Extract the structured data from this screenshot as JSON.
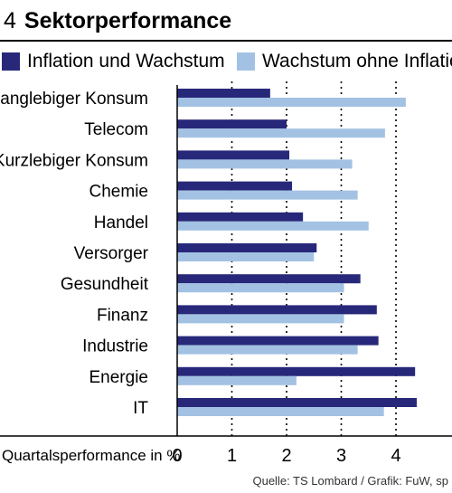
{
  "header": {
    "number": "4",
    "title": "Sektorperformance"
  },
  "footer": {
    "source": "Quelle: TS Lombard / Grafik: FuW, sp"
  },
  "colors": {
    "series1": "#28287a",
    "series2": "#a3c2e3"
  },
  "chart_data": {
    "type": "bar",
    "orientation": "horizontal",
    "title": "Sektorperformance",
    "xlabel": "Quartalsperformance in %",
    "ylabel": "",
    "xlim": [
      0,
      4.5
    ],
    "xticks": [
      0,
      1,
      2,
      3,
      4
    ],
    "grid": "dotted vertical",
    "legend_position": "top",
    "categories": [
      "Langlebiger Konsum",
      "Telecom",
      "Kurzlebiger Konsum",
      "Chemie",
      "Handel",
      "Versorger",
      "Gesundheit",
      "Finanz",
      "Industrie",
      "Energie",
      "IT"
    ],
    "series": [
      {
        "name": "Inflation und Wachstum",
        "color": "#28287a",
        "values": [
          1.7,
          2.0,
          2.05,
          2.1,
          2.3,
          2.55,
          3.35,
          3.65,
          3.68,
          4.35,
          4.38
        ]
      },
      {
        "name": "Wachstum ohne Inflation",
        "color": "#a3c2e3",
        "values": [
          4.18,
          3.8,
          3.2,
          3.3,
          3.5,
          2.5,
          3.05,
          3.05,
          3.3,
          2.18,
          3.78
        ]
      }
    ]
  }
}
